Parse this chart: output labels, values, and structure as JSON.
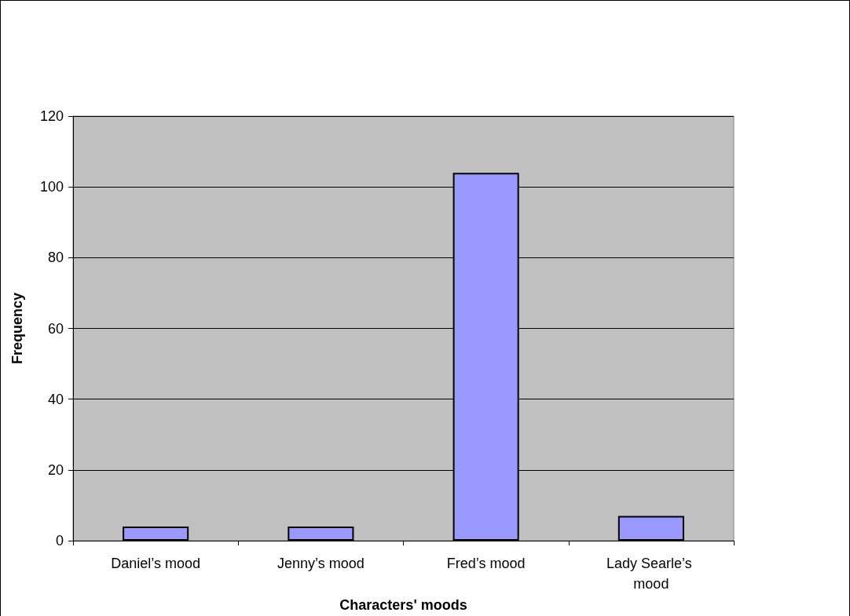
{
  "chart_data": {
    "type": "bar",
    "xlabel": "Characters' moods",
    "ylabel": "Frequency",
    "categories": [
      "Daniel’s mood",
      "Jenny’s mood",
      "Fred’s mood",
      "Lady Searle’s mood"
    ],
    "values": [
      4,
      4,
      104,
      7
    ],
    "color": "#9999ff",
    "ylim": [
      0,
      120
    ],
    "yticks": [
      0,
      20,
      40,
      60,
      80,
      100,
      120
    ],
    "grid": true
  }
}
